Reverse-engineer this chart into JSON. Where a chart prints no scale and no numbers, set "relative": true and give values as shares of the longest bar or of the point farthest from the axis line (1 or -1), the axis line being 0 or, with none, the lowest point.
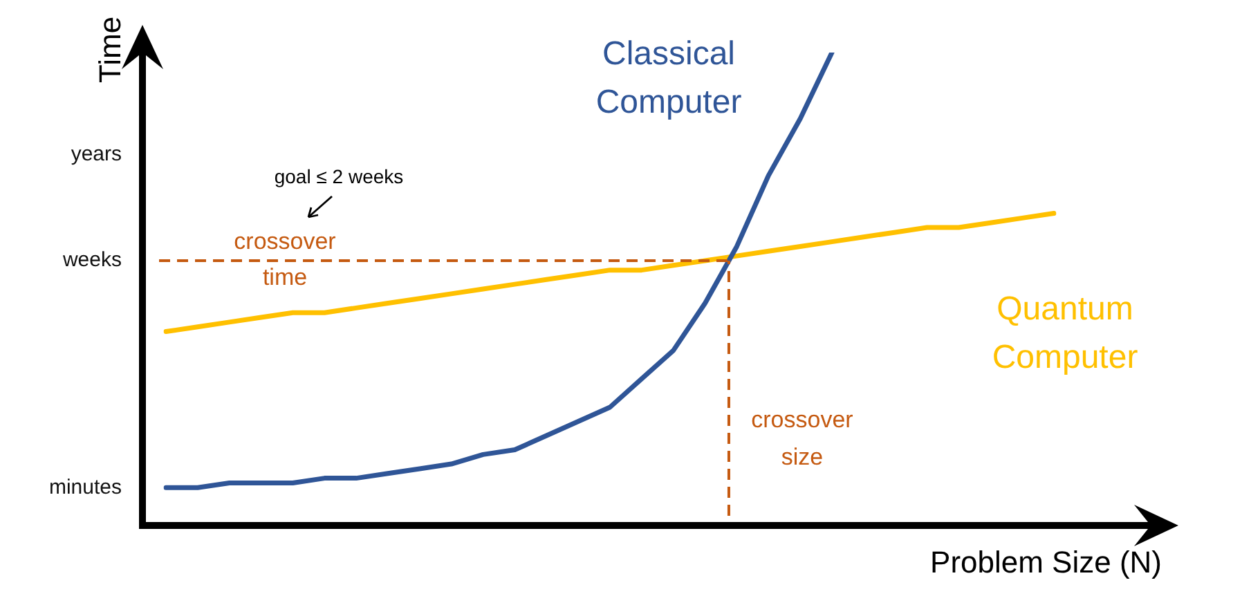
{
  "chart_data": {
    "type": "line",
    "xlabel": "Problem Size (N)",
    "ylabel": "Time",
    "categories": [
      null,
      null,
      null,
      null,
      null,
      null,
      null,
      null,
      null,
      null,
      null,
      null,
      null,
      null,
      null,
      null,
      null,
      null,
      null,
      null,
      null,
      null,
      null,
      null,
      null,
      null,
      null,
      null,
      null
    ],
    "relative": true,
    "grid": false,
    "legend": false,
    "marker": "none",
    "line_style": "solid",
    "series": [
      {
        "name": "Classical Computer",
        "color": "#2f5597",
        "values": [
          0.08,
          0.08,
          0.09,
          0.09,
          0.09,
          0.1,
          0.1,
          0.11,
          0.12,
          0.13,
          0.15,
          0.16,
          0.19,
          0.22,
          0.25,
          0.31,
          0.37,
          0.47,
          0.59,
          0.74,
          0.86,
          1,
          null,
          null,
          null,
          null,
          null,
          null,
          null
        ]
      },
      {
        "name": "Quantum Computer",
        "color": "#ffc000",
        "values": [
          0.41,
          0.42,
          0.43,
          0.44,
          0.45,
          0.45,
          0.46,
          0.47,
          0.48,
          0.49,
          0.5,
          0.51,
          0.52,
          0.53,
          0.54,
          0.54,
          0.55,
          0.56,
          0.57,
          0.58,
          0.59,
          0.6,
          0.61,
          0.62,
          0.63,
          0.63,
          0.64,
          0.65,
          0.66
        ]
      }
    ],
    "ref_lines": [
      {
        "axis": "y",
        "value": 0.56,
        "label": "crossover time",
        "color": "#c55a11",
        "line_style": "dashed"
      }
    ],
    "annotations": [
      "goal ≤ 2 weeks",
      "crossover size",
      "minutes",
      "weeks",
      "years"
    ]
  }
}
